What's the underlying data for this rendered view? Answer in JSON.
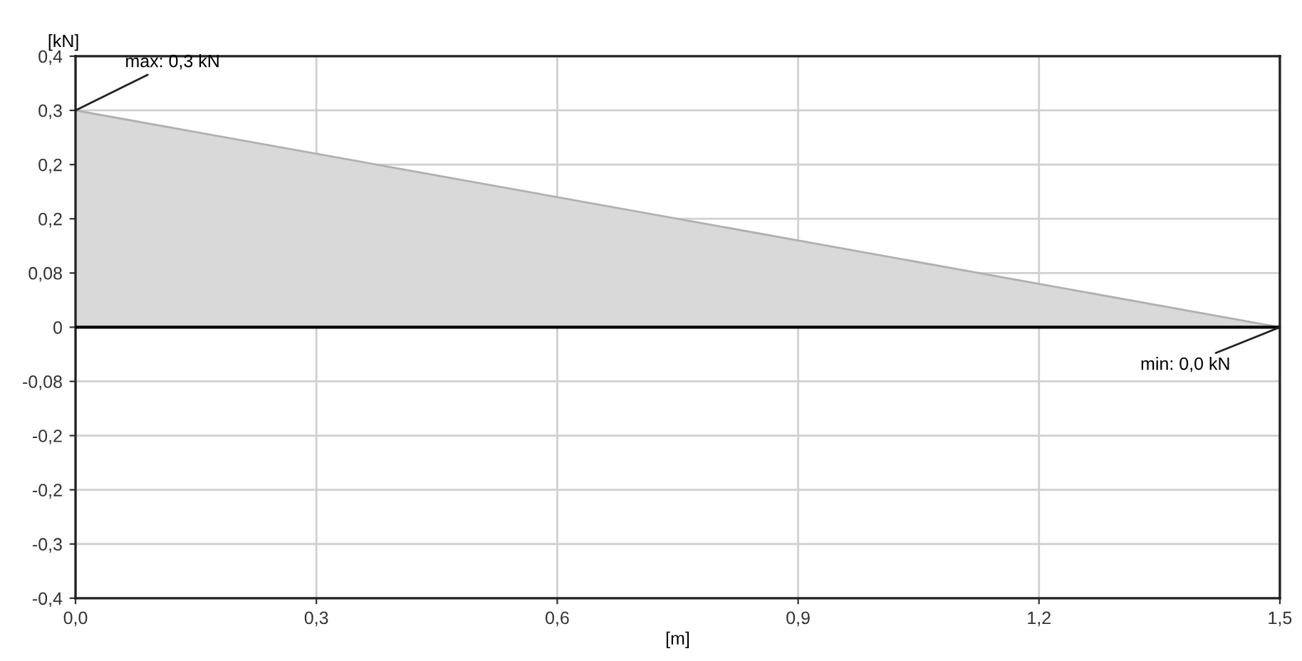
{
  "chart_data": {
    "type": "area",
    "xlabel": "[m]",
    "ylabel": "[kN]",
    "x": [
      0,
      1.5
    ],
    "series": [
      {
        "color": "#d9d9d9",
        "values": [
          0.32,
          0
        ]
      }
    ],
    "xlim": [
      0,
      1.5
    ],
    "xticks": [
      {
        "value": 0,
        "label": "0,0"
      },
      {
        "value": 0.3,
        "label": "0,3"
      },
      {
        "value": 0.6,
        "label": "0,6"
      },
      {
        "value": 0.9,
        "label": "0,9"
      },
      {
        "value": 1.2,
        "label": "1,2"
      },
      {
        "value": 1.5,
        "label": "1,5"
      }
    ],
    "ylim": [
      -0.4,
      0.4
    ],
    "yticks": [
      {
        "value": -0.4,
        "label": "-0,4"
      },
      {
        "value": -0.32,
        "label": "-0,3"
      },
      {
        "value": -0.24,
        "label": "-0,2"
      },
      {
        "value": -0.16,
        "label": "-0,2"
      },
      {
        "value": -0.08,
        "label": "-0,08"
      },
      0,
      {
        "value": 0.08,
        "label": "0,08"
      },
      {
        "value": 0.16,
        "label": "0,2"
      },
      {
        "value": 0.24,
        "label": "0,2"
      },
      {
        "value": 0.32,
        "label": "0,3"
      },
      {
        "value": 0.4,
        "label": "0,4"
      }
    ],
    "ref_lines": [
      {
        "axis": "y",
        "value": 0,
        "color": "#000000"
      }
    ],
    "annotations": [
      {
        "text": "max: 0,3 kN",
        "x": 0,
        "y": 0.32
      },
      {
        "text": "min: 0,0 kN",
        "x": 1.5,
        "y": 0
      }
    ],
    "grid": true
  }
}
